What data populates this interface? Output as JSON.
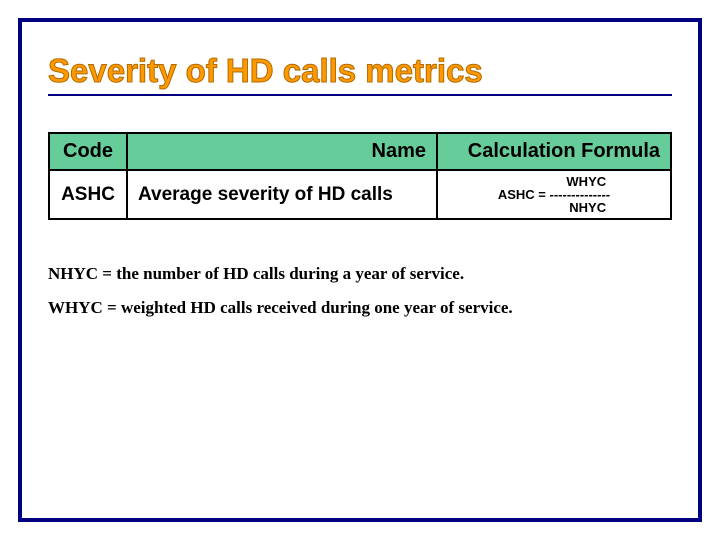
{
  "slide": {
    "title": "Severity of HD calls metrics",
    "frame_color": "#000080",
    "title_color": "#ff9900"
  },
  "table": {
    "type": "table",
    "header_bg": "#66cc99",
    "border_color": "#000000",
    "columns": [
      {
        "label": "Code"
      },
      {
        "label": "Name"
      },
      {
        "label": "Calculation Formula"
      }
    ],
    "rows": [
      {
        "code": "ASHC",
        "name": "Average severity of HD calls",
        "formula": {
          "lhs": "ASHC = ",
          "numerator": "WHYC",
          "separator": "--------------",
          "denominator": "NHYC"
        }
      }
    ]
  },
  "definitions": [
    "NHYC = the number of HD calls during a year of service.",
    "WHYC = weighted HD calls received during one year of service."
  ]
}
